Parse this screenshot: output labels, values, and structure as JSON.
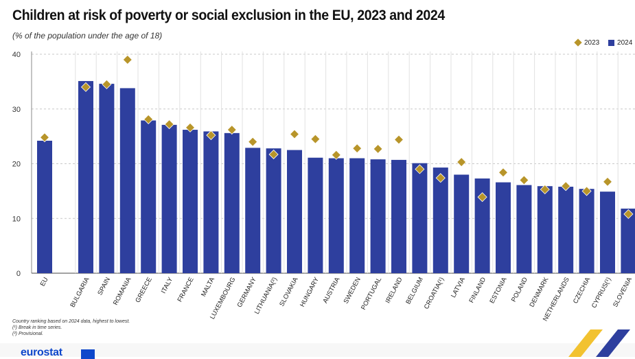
{
  "title": "Children at risk of poverty or social exclusion in the EU, 2023 and 2024",
  "subtitle": "(% of the population under the age of 18)",
  "legend": {
    "label_2023": "2023",
    "label_2024": "2024"
  },
  "colors": {
    "bar_2024": "#2e3f9e",
    "marker_2023": "#b8952a",
    "grid": "#c8c8c8"
  },
  "notes": [
    "Country ranking based on 2024 data, highest to lowest.",
    "(¹) Break in time series.",
    "(²) Provisional."
  ],
  "logo": {
    "text": "eurostat"
  },
  "chart_data": {
    "type": "bar",
    "categories": [
      "EU",
      "BULGARIA",
      "SPAIN",
      "ROMANIA",
      "GREECE",
      "ITALY",
      "FRANCE",
      "MALTA",
      "LUXEMBOURG",
      "GERMANY",
      "LITHUANIA(²)",
      "SLOVAKIA",
      "HUNGARY",
      "AUSTRIA",
      "SWEDEN",
      "PORTUGAL",
      "IRELAND",
      "BELGIUM",
      "CROATIA(¹)",
      "LATVIA",
      "FINLAND",
      "ESTONIA",
      "POLAND",
      "DENMARK",
      "NETHERLANDS",
      "CZECHIA",
      "CYPRUS(¹)",
      "SLOVENIA"
    ],
    "series": [
      {
        "name": "2024",
        "kind": "bar",
        "values": [
          24.2,
          35.1,
          34.6,
          33.8,
          27.9,
          27.1,
          26.2,
          25.9,
          25.6,
          22.9,
          22.8,
          22.5,
          21.1,
          21.0,
          21.0,
          20.8,
          20.7,
          20.1,
          19.3,
          18.0,
          17.3,
          16.6,
          16.1,
          15.9,
          15.8,
          15.4,
          14.9,
          11.8
        ]
      },
      {
        "name": "2023",
        "kind": "marker",
        "values": [
          24.8,
          34.0,
          34.5,
          39.0,
          28.1,
          27.2,
          26.6,
          25.2,
          26.2,
          24.0,
          21.7,
          25.4,
          24.5,
          21.6,
          22.8,
          22.7,
          24.4,
          19.0,
          17.4,
          20.3,
          13.9,
          18.4,
          17.0,
          15.3,
          15.9,
          15.0,
          16.7,
          10.8
        ]
      }
    ],
    "ylim": [
      0,
      40
    ],
    "yticks": [
      0,
      10,
      20,
      30,
      40
    ],
    "xlabel": "",
    "ylabel": "",
    "grid": true,
    "legend_position": "top-right"
  }
}
